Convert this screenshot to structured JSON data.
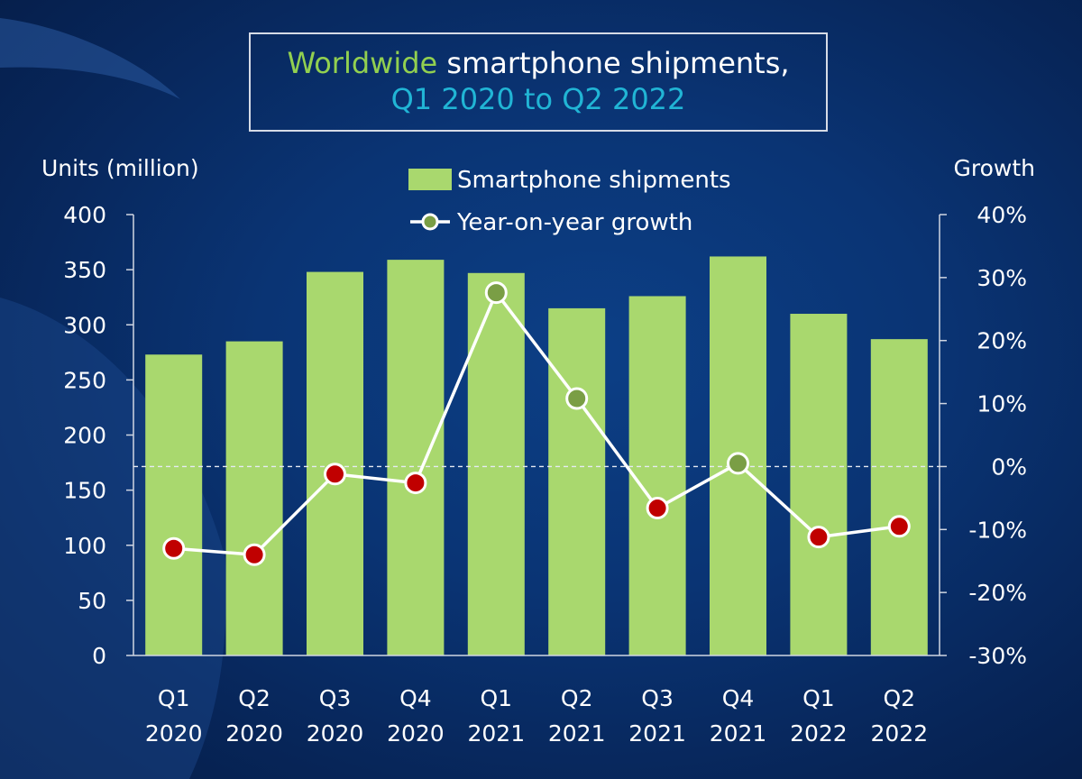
{
  "title": {
    "part1": "Worldwide",
    "part2": "smartphone shipments,",
    "subtitle": "Q1 2020 to Q2 2022"
  },
  "chart_data": {
    "type": "bar",
    "categories": [
      [
        "Q1",
        "2020"
      ],
      [
        "Q2",
        "2020"
      ],
      [
        "Q3",
        "2020"
      ],
      [
        "Q4",
        "2020"
      ],
      [
        "Q1",
        "2021"
      ],
      [
        "Q2",
        "2021"
      ],
      [
        "Q3",
        "2021"
      ],
      [
        "Q4",
        "2021"
      ],
      [
        "Q1",
        "2022"
      ],
      [
        "Q2",
        "2022"
      ]
    ],
    "series": [
      {
        "name": "Smartphone shipments",
        "type": "bar",
        "axis": "left",
        "color": "#a9d86e",
        "values": [
          273,
          285,
          348,
          359,
          347,
          315,
          326,
          362,
          310,
          287
        ]
      },
      {
        "name": "Year-on-year growth",
        "type": "line",
        "axis": "right",
        "color": "#ffffff",
        "values": [
          -13.0,
          -14.0,
          -1.2,
          -2.6,
          27.6,
          10.8,
          -6.6,
          0.5,
          -11.2,
          -9.5
        ]
      }
    ],
    "ylabel": "Units (million)",
    "ylabel_right": "Growth",
    "ylim": [
      0,
      400
    ],
    "yticks": [
      0,
      50,
      100,
      150,
      200,
      250,
      300,
      350,
      400
    ],
    "ylim_right": [
      -30,
      40
    ],
    "yticks_right": [
      "-30%",
      "-20%",
      "-10%",
      "0%",
      "10%",
      "20%",
      "30%",
      "40%"
    ],
    "zero_line_right": 0,
    "marker_positive_color": "#7a9e45",
    "marker_negative_color": "#c00000",
    "legend_position": "top-center",
    "grid": false
  }
}
